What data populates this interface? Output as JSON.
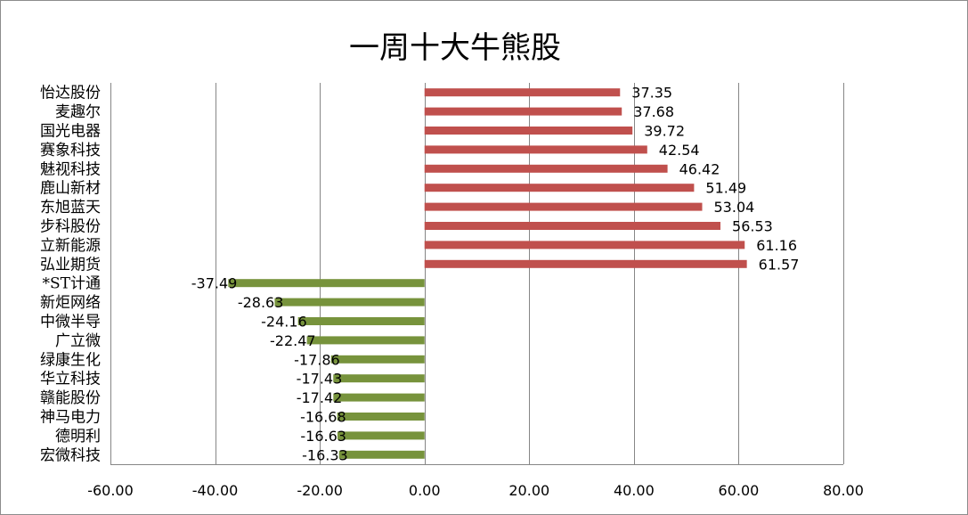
{
  "chart_data": {
    "type": "bar",
    "orientation": "horizontal",
    "title": "一周十大牛熊股",
    "categories": [
      "怡达股份",
      "麦趣尔",
      "国光电器",
      "赛象科技",
      "魅视科技",
      "鹿山新材",
      "东旭蓝天",
      "步科股份",
      "立新能源",
      "弘业期货",
      "*ST计通",
      "新炬网络",
      "中微半导",
      "广立微",
      "绿康生化",
      "华立科技",
      "赣能股份",
      "神马电力",
      "德明利",
      "宏微科技"
    ],
    "values": [
      37.35,
      37.68,
      39.72,
      42.54,
      46.42,
      51.49,
      53.04,
      56.53,
      61.16,
      61.57,
      -37.49,
      -28.63,
      -24.16,
      -22.47,
      -17.86,
      -17.43,
      -17.42,
      -16.68,
      -16.63,
      -16.33
    ],
    "value_labels": [
      "37.35",
      "37.68",
      "39.72",
      "42.54",
      "46.42",
      "51.49",
      "53.04",
      "56.53",
      "61.16",
      "61.57",
      "-37.49",
      "-28.63",
      "-24.16",
      "-22.47",
      "-17.86",
      "-17.43",
      "-17.42",
      "-16.68",
      "-16.63",
      "-16.33"
    ],
    "xlim": [
      -60,
      80
    ],
    "x_ticks": [
      -60,
      -40,
      -20,
      0,
      20,
      40,
      60,
      80
    ],
    "x_tick_labels": [
      "-60.00",
      "-40.00",
      "-20.00",
      "0.00",
      "20.00",
      "40.00",
      "60.00",
      "80.00"
    ],
    "grid": "vertical",
    "colors": {
      "positive": "#c0504d",
      "negative": "#77933c",
      "grid": "#868686",
      "axis": "#868686"
    }
  }
}
